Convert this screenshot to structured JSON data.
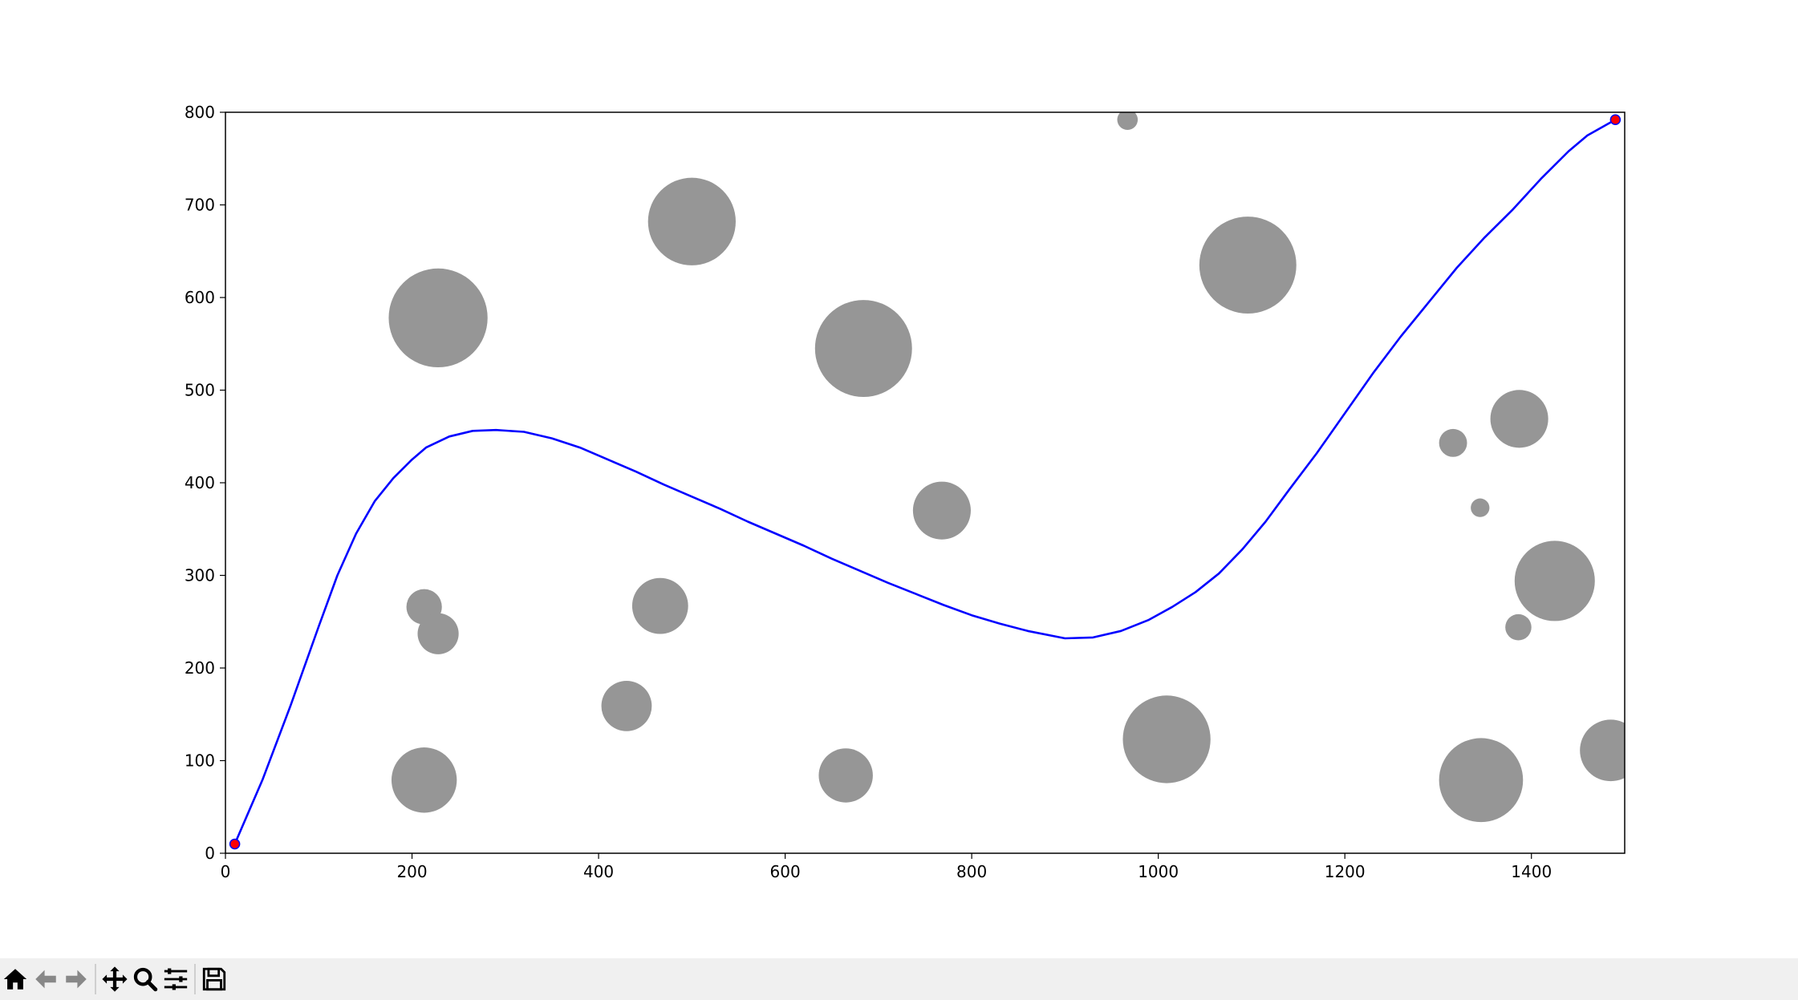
{
  "chart_data": {
    "type": "scatter",
    "title": "",
    "xlabel": "",
    "ylabel": "",
    "xlim": [
      0,
      1500
    ],
    "ylim": [
      0,
      800
    ],
    "xticks": [
      "0",
      "200",
      "400",
      "600",
      "800",
      "1000",
      "1200",
      "1400"
    ],
    "yticks": [
      "0",
      "100",
      "200",
      "300",
      "400",
      "500",
      "600",
      "700",
      "800"
    ],
    "grid": false,
    "legend": "none",
    "colors": {
      "path": "#0000ff",
      "obstacle": "#969696",
      "endpoint_fill": "#ff0000",
      "endpoint_edge": "#0000ff"
    },
    "obstacles": [
      {
        "x": 228,
        "y": 578,
        "r": 53
      },
      {
        "x": 500,
        "y": 682,
        "r": 47
      },
      {
        "x": 684,
        "y": 545,
        "r": 52
      },
      {
        "x": 967,
        "y": 792,
        "r": 11
      },
      {
        "x": 1096,
        "y": 635,
        "r": 52
      },
      {
        "x": 768,
        "y": 370,
        "r": 31
      },
      {
        "x": 213,
        "y": 266,
        "r": 19
      },
      {
        "x": 228,
        "y": 237,
        "r": 22
      },
      {
        "x": 466,
        "y": 267,
        "r": 30
      },
      {
        "x": 430,
        "y": 159,
        "r": 27
      },
      {
        "x": 213,
        "y": 79,
        "r": 35
      },
      {
        "x": 665,
        "y": 84,
        "r": 29
      },
      {
        "x": 1009,
        "y": 123,
        "r": 47
      },
      {
        "x": 1316,
        "y": 443,
        "r": 15
      },
      {
        "x": 1387,
        "y": 469,
        "r": 31
      },
      {
        "x": 1345,
        "y": 373,
        "r": 10
      },
      {
        "x": 1425,
        "y": 294,
        "r": 43
      },
      {
        "x": 1386,
        "y": 244,
        "r": 14
      },
      {
        "x": 1346,
        "y": 79,
        "r": 45
      },
      {
        "x": 1485,
        "y": 111,
        "r": 33
      }
    ],
    "series": [
      {
        "x": [
          10,
          40,
          70,
          100,
          120,
          140,
          160,
          180,
          200,
          215,
          240,
          265,
          290,
          320,
          350,
          380,
          410,
          440,
          470,
          500,
          530,
          560,
          590,
          620,
          650,
          680,
          710,
          740,
          770,
          800,
          830,
          860,
          900,
          930,
          960,
          990,
          1015,
          1040,
          1065,
          1090,
          1115,
          1140,
          1170,
          1200,
          1230,
          1260,
          1290,
          1320,
          1350,
          1380,
          1410,
          1440,
          1460,
          1490
        ],
        "y": [
          10,
          80,
          160,
          245,
          300,
          345,
          380,
          405,
          425,
          438,
          450,
          456,
          457,
          455,
          448,
          438,
          425,
          412,
          398,
          385,
          372,
          358,
          345,
          332,
          318,
          305,
          292,
          280,
          268,
          257,
          248,
          240,
          232,
          233,
          240,
          252,
          266,
          282,
          302,
          328,
          358,
          392,
          432,
          475,
          518,
          558,
          595,
          632,
          665,
          695,
          728,
          758,
          775,
          792
        ]
      }
    ],
    "endpoints": [
      {
        "x": 10,
        "y": 10
      },
      {
        "x": 1490,
        "y": 792
      }
    ]
  },
  "toolbar": {
    "icons": [
      "home-icon",
      "back-arrow-icon",
      "forward-arrow-icon",
      "pan-icon",
      "zoom-icon",
      "subplots-icon",
      "save-icon"
    ]
  }
}
